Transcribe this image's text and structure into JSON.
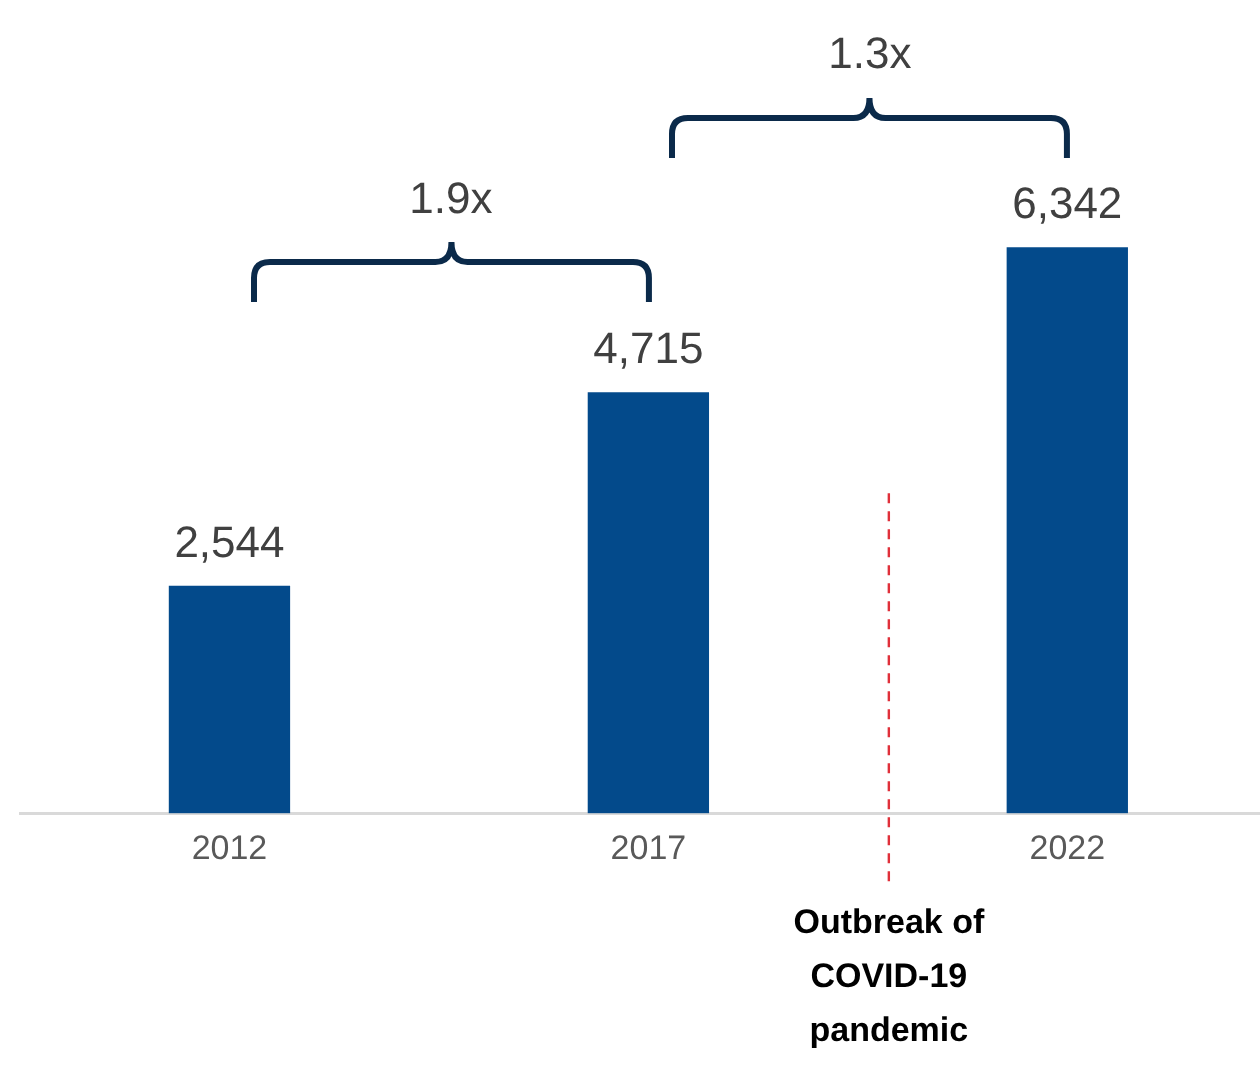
{
  "chart_data": {
    "type": "bar",
    "x": [
      2012,
      2017,
      2022
    ],
    "values": [
      2544,
      4715,
      6342
    ],
    "color": "#034a8b",
    "value_labels": [
      "2,544",
      "4,715",
      "6,342"
    ],
    "xlim": [
      2009.5,
      2024.3
    ],
    "xticks": [
      2012,
      2017,
      2022
    ],
    "tick_labels": "x",
    "grid": false,
    "legend": false,
    "ref_lines": [
      {
        "axis": "x",
        "value": 2019.87,
        "label": "Outbreak of COVID-19 pandemic",
        "color": "#e0303a",
        "line_style": "dashed"
      }
    ],
    "annotations": [
      "1.9x",
      "1.3x"
    ]
  }
}
